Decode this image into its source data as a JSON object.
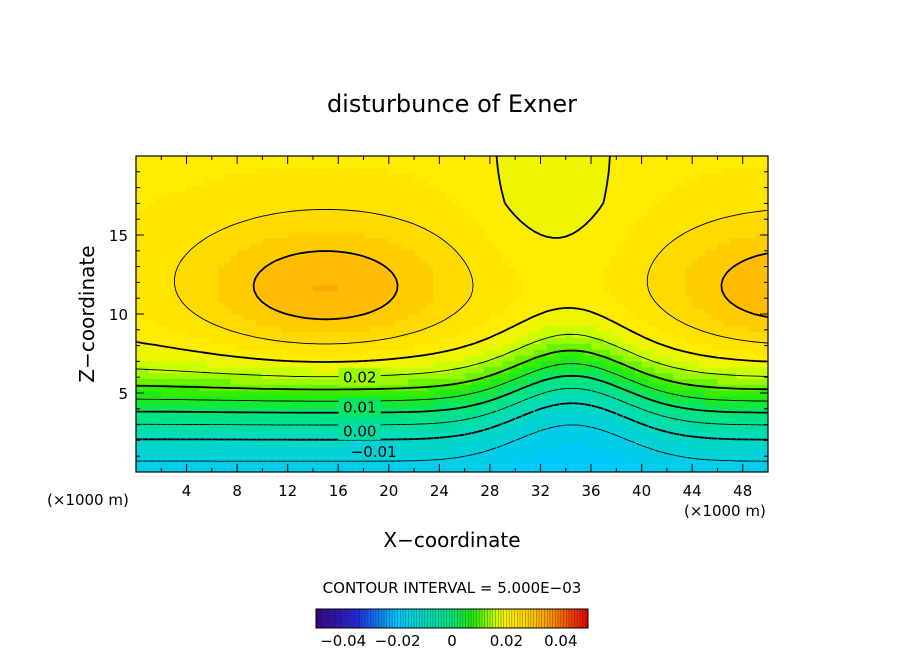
{
  "chart_data": {
    "type": "heatmap",
    "title": "disturbunce of Exner",
    "xlabel": "X−coordinate",
    "ylabel": "Z−coordinate",
    "x_unit_left": "(×1000 m)",
    "x_unit_right": "(×1000 m)",
    "xlim": [
      0,
      50
    ],
    "ylim": [
      0,
      20
    ],
    "x_ticks": [
      {
        "value": 4,
        "label": "4"
      },
      {
        "value": 8,
        "label": "8"
      },
      {
        "value": 12,
        "label": "12"
      },
      {
        "value": 16,
        "label": "16"
      },
      {
        "value": 20,
        "label": "20"
      },
      {
        "value": 24,
        "label": "24"
      },
      {
        "value": 28,
        "label": "28"
      },
      {
        "value": 32,
        "label": "32"
      },
      {
        "value": 36,
        "label": "36"
      },
      {
        "value": 40,
        "label": "40"
      },
      {
        "value": 44,
        "label": "44"
      },
      {
        "value": 48,
        "label": "48"
      }
    ],
    "y_ticks": [
      {
        "value": 5,
        "label": "5"
      },
      {
        "value": 10,
        "label": "10"
      },
      {
        "value": 15,
        "label": "15"
      }
    ],
    "contour_interval_text": "CONTOUR INTERVAL = 5.000E−03",
    "contour_labels": [
      {
        "value": 0.02,
        "label": "0.02",
        "x": 17.7,
        "z": 6.0
      },
      {
        "value": 0.01,
        "label": "0.01",
        "x": 17.7,
        "z": 4.1
      },
      {
        "value": 0.0,
        "label": "0.00",
        "x": 17.7,
        "z": 2.6
      },
      {
        "value": -0.01,
        "label": "−0.01",
        "x": 18.8,
        "z": 1.3
      }
    ],
    "field_range": [
      -0.05,
      0.05
    ],
    "field_samples": [
      {
        "x": 17,
        "z": 11,
        "value": 0.037
      },
      {
        "x": 48,
        "z": 11,
        "value": 0.037
      },
      {
        "x": 34,
        "z": 12,
        "value": 0.022
      },
      {
        "x": 10,
        "z": 4,
        "value": 0.01
      },
      {
        "x": 35,
        "z": 1,
        "value": -0.012
      }
    ],
    "colorbar": {
      "range": [
        -0.05,
        0.05
      ],
      "ticks": [
        {
          "value": -0.04,
          "label": "−0.04"
        },
        {
          "value": -0.02,
          "label": "−0.02"
        },
        {
          "value": 0,
          "label": "0"
        },
        {
          "value": 0.02,
          "label": "0.02"
        },
        {
          "value": 0.04,
          "label": "0.04"
        }
      ]
    }
  }
}
